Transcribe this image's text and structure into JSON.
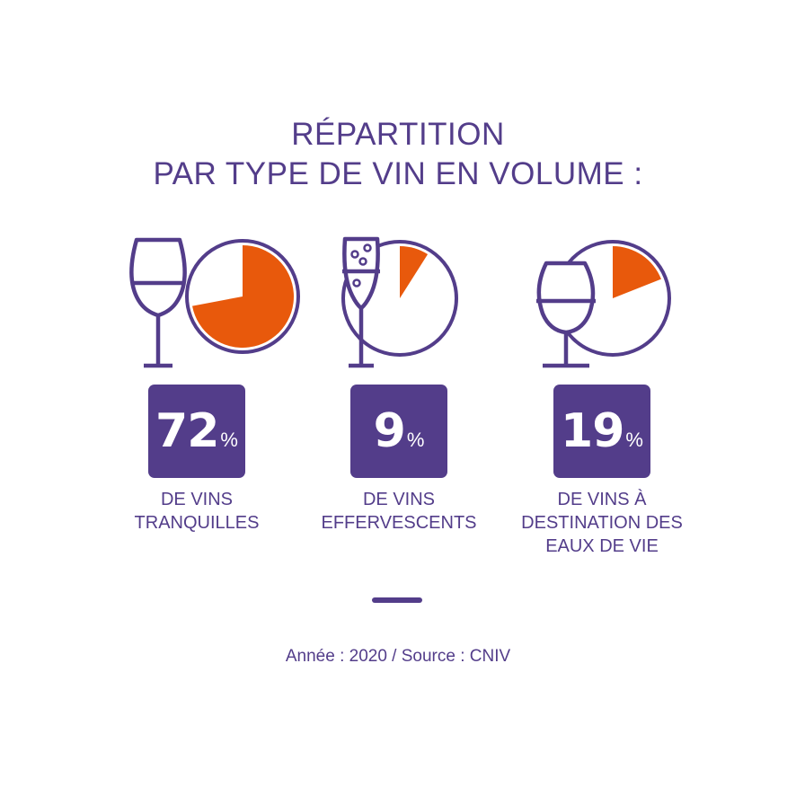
{
  "title": {
    "line1": "RÉPARTITION",
    "line2": "PAR TYPE DE VIN EN VOLUME :"
  },
  "chart_data": {
    "type": "pie",
    "title": "RÉPARTITION PAR TYPE DE VIN EN VOLUME :",
    "unit": "%",
    "categories": [
      "DE VINS TRANQUILLES",
      "DE VINS EFFERVESCENTS",
      "DE VINS À DESTINATION DES EAUX DE VIE"
    ],
    "values": [
      72,
      9,
      19
    ]
  },
  "items": [
    {
      "value": "72",
      "pct_symbol": "%",
      "label_lines": [
        "DE VINS",
        "TRANQUILLES"
      ],
      "icon": "wine-glass-icon"
    },
    {
      "value": "9",
      "pct_symbol": "%",
      "label_lines": [
        "DE VINS",
        "EFFERVESCENTS"
      ],
      "icon": "champagne-flute-icon"
    },
    {
      "value": "19",
      "pct_symbol": "%",
      "label_lines": [
        "DE VINS À",
        "DESTINATION DES",
        "EAUX DE VIE"
      ],
      "icon": "brandy-snifter-icon"
    }
  ],
  "source": "Année : 2020 / Source : CNIV",
  "colors": {
    "purple": "#533d8a",
    "orange": "#e8590c"
  }
}
